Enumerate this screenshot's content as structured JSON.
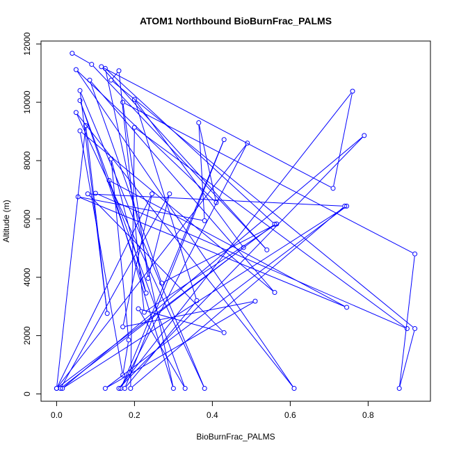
{
  "chart_data": {
    "type": "line",
    "title": "ATOM1 Northbound BioBurnFrac_PALMS",
    "xlabel": "BioBurnFrac_PALMS",
    "ylabel": "Altitude (m)",
    "xlim": [
      -0.04,
      0.96
    ],
    "ylim": [
      -250,
      12100
    ],
    "xticks": [
      0.0,
      0.2,
      0.4,
      0.6,
      0.8
    ],
    "xtick_labels": [
      "0.0",
      "0.2",
      "0.4",
      "0.6",
      "0.8"
    ],
    "yticks": [
      0,
      2000,
      4000,
      6000,
      8000,
      10000,
      12000
    ],
    "ytick_labels": [
      "0",
      "2000",
      "4000",
      "6000",
      "8000",
      "10000",
      "12000"
    ],
    "grid": false,
    "legend": "none",
    "line_color": "#0000ff",
    "marker": "open-circle",
    "series": [
      {
        "points": [
          [
            0.04,
            11680
          ],
          [
            0.09,
            11300
          ],
          [
            0.54,
            4940
          ],
          [
            0.115,
            11220
          ],
          [
            0.71,
            7050
          ],
          [
            0.76,
            10380
          ],
          [
            0.16,
            190
          ],
          [
            0.79,
            8860
          ],
          [
            0.015,
            190
          ],
          [
            0.745,
            6440
          ],
          [
            0.125,
            190
          ],
          [
            0.51,
            3180
          ],
          [
            0.17,
            2300
          ],
          [
            0.245,
            6860
          ],
          [
            0.0,
            190
          ],
          [
            0.075,
            9200
          ],
          [
            0.13,
            2760
          ],
          [
            0.06,
            10400
          ],
          [
            0.38,
            190
          ],
          [
            0.05,
            9650
          ],
          [
            0.61,
            190
          ],
          [
            0.05,
            11120
          ],
          [
            0.41,
            6560
          ],
          [
            0.365,
            9300
          ],
          [
            0.38,
            5940
          ],
          [
            0.055,
            6760
          ],
          [
            0.745,
            2970
          ],
          [
            0.135,
            7320
          ],
          [
            0.3,
            190
          ],
          [
            0.125,
            11160
          ],
          [
            0.56,
            5820
          ],
          [
            0.0,
            190
          ],
          [
            0.49,
            8600
          ],
          [
            0.165,
            190
          ],
          [
            0.43,
            8720
          ],
          [
            0.175,
            190
          ],
          [
            0.36,
            3200
          ],
          [
            0.2,
            10100
          ],
          [
            0.48,
            5020
          ],
          [
            0.01,
            190
          ],
          [
            0.29,
            6860
          ],
          [
            0.235,
            3960
          ],
          [
            0.17,
            10000
          ],
          [
            0.92,
            4800
          ],
          [
            0.88,
            190
          ],
          [
            0.92,
            2240
          ],
          [
            0.14,
            10760
          ],
          [
            0.16,
            11080
          ],
          [
            0.225,
            2800
          ],
          [
            0.565,
            5830
          ],
          [
            0.27,
            3800
          ],
          [
            0.085,
            10760
          ],
          [
            0.56,
            3480
          ],
          [
            0.06,
            9020
          ],
          [
            0.17,
            650
          ],
          [
            0.185,
            1850
          ],
          [
            0.14,
            8060
          ],
          [
            0.23,
            3460
          ],
          [
            0.06,
            10060
          ],
          [
            0.33,
            190
          ],
          [
            0.21,
            2920
          ],
          [
            0.43,
            2100
          ],
          [
            0.08,
            6860
          ],
          [
            0.74,
            6440
          ],
          [
            0.19,
            190
          ],
          [
            0.2,
            9140
          ],
          [
            0.9,
            2240
          ],
          [
            0.1,
            6880
          ]
        ]
      }
    ]
  }
}
